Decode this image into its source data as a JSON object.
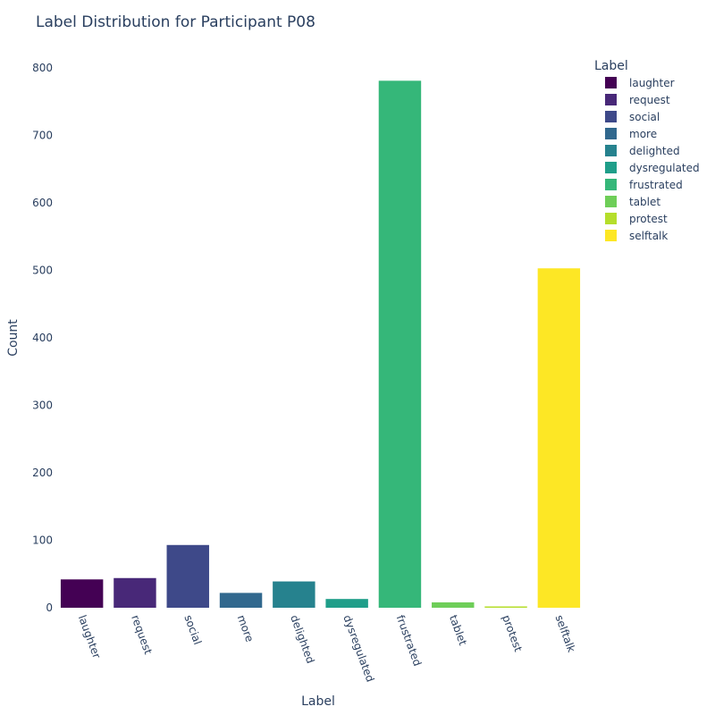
{
  "chart_data": {
    "type": "bar",
    "title": "Label Distribution for Participant P08",
    "xlabel": "Label",
    "ylabel": "Count",
    "ylim": [
      0,
      800
    ],
    "yticks": [
      0,
      100,
      200,
      300,
      400,
      500,
      600,
      700,
      800
    ],
    "categories": [
      "laughter",
      "request",
      "social",
      "more",
      "delighted",
      "dysregulated",
      "frustrated",
      "tablet",
      "protest",
      "selftalk"
    ],
    "values": [
      42,
      44,
      93,
      22,
      39,
      13,
      781,
      8,
      2,
      503
    ],
    "colors": [
      "#440154",
      "#482878",
      "#3e4989",
      "#31688e",
      "#26828e",
      "#1f9e89",
      "#35b779",
      "#6ece58",
      "#b5de2b",
      "#fde725"
    ],
    "legend": {
      "title": "Label",
      "position": "top-right",
      "entries": [
        "laughter",
        "request",
        "social",
        "more",
        "delighted",
        "dysregulated",
        "frustrated",
        "tablet",
        "protest",
        "selftalk"
      ]
    },
    "grid": false
  }
}
